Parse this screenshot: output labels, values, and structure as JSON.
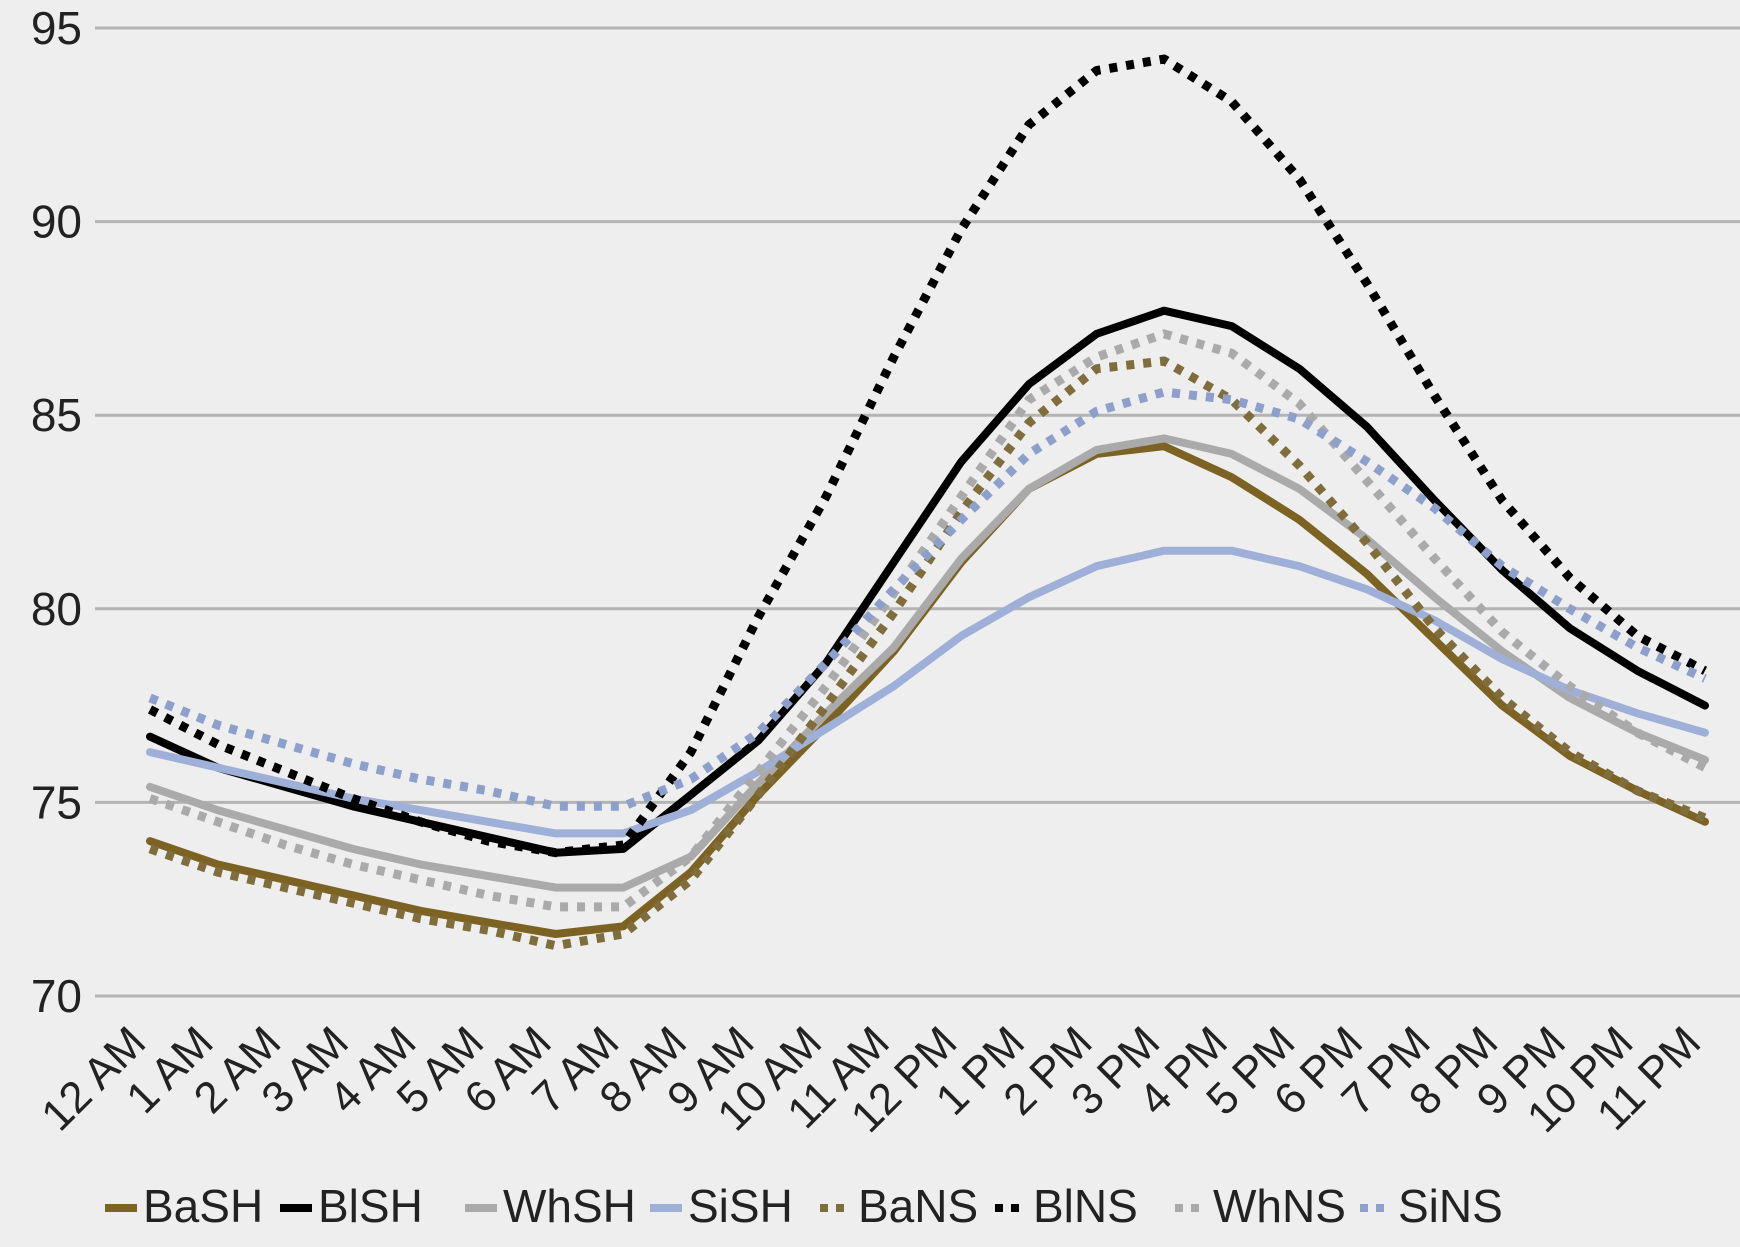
{
  "chart_data": {
    "type": "line",
    "title": "",
    "xlabel": "",
    "ylabel": "",
    "ylim": [
      70,
      95
    ],
    "yticks": [
      70,
      75,
      80,
      85,
      90,
      95
    ],
    "grid": true,
    "legend_position": "bottom",
    "categories": [
      "12 AM",
      "1 AM",
      "2 AM",
      "3 AM",
      "4 AM",
      "5 AM",
      "6 AM",
      "7 AM",
      "8 AM",
      "9 AM",
      "10 AM",
      "11 AM",
      "12 PM",
      "1 PM",
      "2 PM",
      "3 PM",
      "4 PM",
      "5 PM",
      "6 PM",
      "7 PM",
      "8 PM",
      "9 PM",
      "10 PM",
      "11 PM"
    ],
    "series": [
      {
        "name": "BaSH",
        "color": "#7d6323",
        "style": "solid",
        "values": [
          74.0,
          73.4,
          73.0,
          72.6,
          72.2,
          71.9,
          71.6,
          71.8,
          73.2,
          75.2,
          77.0,
          78.9,
          81.2,
          83.1,
          84.0,
          84.2,
          83.4,
          82.3,
          80.9,
          79.2,
          77.5,
          76.2,
          75.3,
          74.5
        ]
      },
      {
        "name": "BlSH",
        "color": "#000000",
        "style": "solid",
        "values": [
          76.7,
          75.9,
          75.4,
          74.9,
          74.5,
          74.1,
          73.7,
          73.8,
          75.2,
          76.6,
          78.6,
          81.2,
          83.8,
          85.8,
          87.1,
          87.7,
          87.3,
          86.2,
          84.7,
          82.8,
          81.0,
          79.5,
          78.4,
          77.5
        ]
      },
      {
        "name": "WhSH",
        "color": "#aaaaaa",
        "style": "solid",
        "values": [
          75.4,
          74.8,
          74.3,
          73.8,
          73.4,
          73.1,
          72.8,
          72.8,
          73.6,
          75.5,
          77.3,
          79.0,
          81.3,
          83.1,
          84.1,
          84.4,
          84.0,
          83.1,
          81.8,
          80.3,
          78.9,
          77.7,
          76.8,
          76.1
        ]
      },
      {
        "name": "SiSH",
        "color": "#9fb0d8",
        "style": "solid",
        "values": [
          76.3,
          75.9,
          75.5,
          75.1,
          74.8,
          74.5,
          74.2,
          74.2,
          74.8,
          75.8,
          76.9,
          78.0,
          79.3,
          80.3,
          81.1,
          81.5,
          81.5,
          81.1,
          80.5,
          79.7,
          78.7,
          77.9,
          77.3,
          76.8
        ]
      },
      {
        "name": "BaNS",
        "color": "#7f6d3c",
        "style": "dotted",
        "values": [
          73.8,
          73.2,
          72.8,
          72.4,
          72.0,
          71.7,
          71.3,
          71.6,
          73.0,
          75.2,
          77.5,
          79.9,
          82.5,
          84.8,
          86.2,
          86.4,
          85.4,
          83.7,
          81.7,
          79.5,
          77.7,
          76.3,
          75.3,
          74.6
        ]
      },
      {
        "name": "BlNS",
        "color": "#000000",
        "style": "dotted",
        "values": [
          77.4,
          76.5,
          75.8,
          75.1,
          74.5,
          74.0,
          73.7,
          73.9,
          76.3,
          79.8,
          82.9,
          86.5,
          89.8,
          92.5,
          93.9,
          94.2,
          93.1,
          91.1,
          88.4,
          85.5,
          82.8,
          80.8,
          79.3,
          78.4
        ]
      },
      {
        "name": "WhNS",
        "color": "#aaaaaa",
        "style": "dotted",
        "values": [
          75.1,
          74.5,
          73.9,
          73.4,
          73.0,
          72.6,
          72.3,
          72.3,
          73.6,
          75.8,
          78.0,
          80.4,
          82.9,
          85.4,
          86.5,
          87.1,
          86.6,
          85.3,
          83.3,
          81.3,
          79.4,
          78.0,
          76.8,
          75.9
        ]
      },
      {
        "name": "SiNS",
        "color": "#8da0cb",
        "style": "dotted",
        "values": [
          77.7,
          77.0,
          76.5,
          76.0,
          75.6,
          75.3,
          74.9,
          74.9,
          75.6,
          76.8,
          78.6,
          80.5,
          82.3,
          84.0,
          85.1,
          85.6,
          85.4,
          84.9,
          83.8,
          82.6,
          81.1,
          80.0,
          79.0,
          78.2
        ]
      }
    ]
  }
}
